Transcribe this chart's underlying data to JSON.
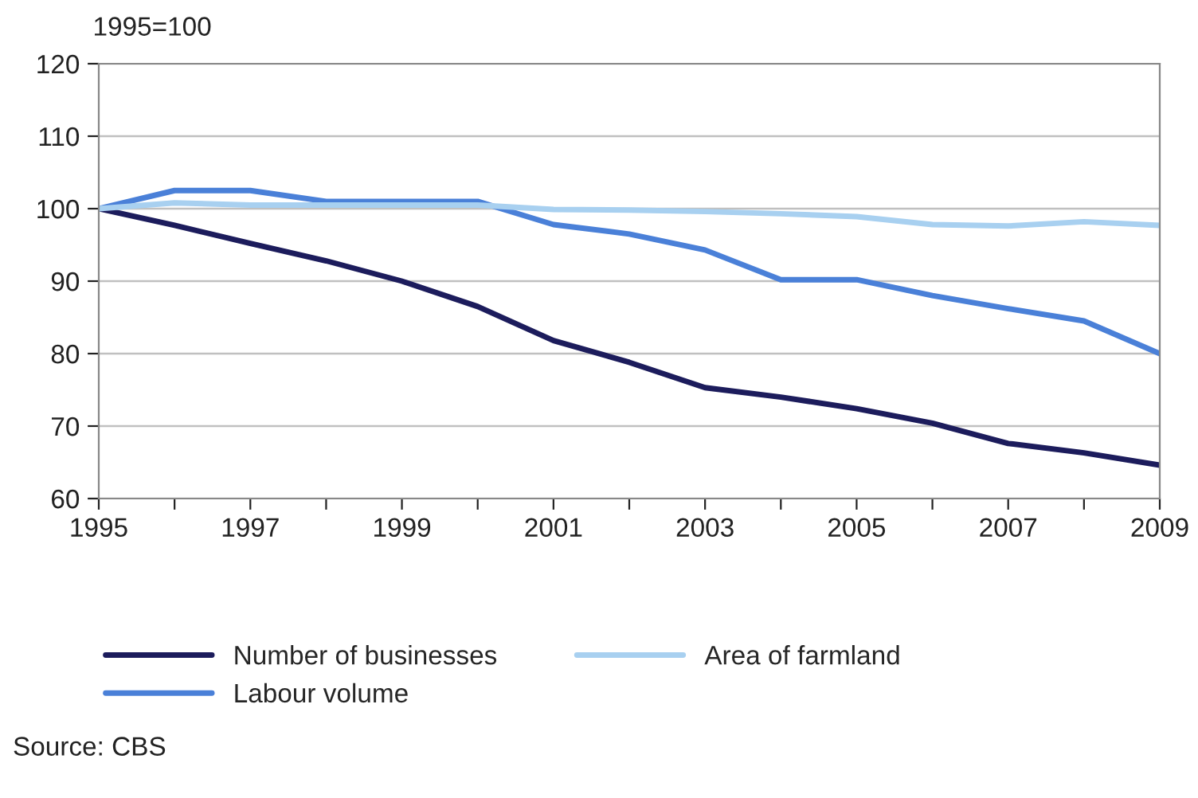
{
  "chart_data": {
    "type": "line",
    "ylabel": "1995=100",
    "x": [
      1995,
      1996,
      1997,
      1998,
      1999,
      2000,
      2001,
      2002,
      2003,
      2004,
      2005,
      2006,
      2007,
      2008,
      2009
    ],
    "series": [
      {
        "name": "Number of businesses",
        "color": "#1c1c5c",
        "values": [
          100,
          97.7,
          95.2,
          92.8,
          90,
          86.5,
          81.8,
          78.8,
          75.3,
          74,
          72.4,
          70.4,
          67.6,
          66.3,
          64.6
        ]
      },
      {
        "name": "Labour volume",
        "color": "#4a80d8",
        "values": [
          100,
          102.5,
          102.5,
          101,
          101,
          101,
          97.8,
          96.5,
          94.3,
          90.2,
          90.2,
          88,
          86.2,
          84.5,
          80
        ]
      },
      {
        "name": "Area of farmland",
        "color": "#a8d0f0",
        "values": [
          100,
          100.8,
          100.5,
          100.5,
          100.5,
          100.5,
          99.9,
          99.8,
          99.6,
          99.3,
          98.9,
          97.8,
          97.6,
          98.2,
          97.7
        ]
      }
    ],
    "xlim": [
      1995,
      2009
    ],
    "xticks": [
      1995,
      {
        "value": 1996,
        "label": null
      },
      1997,
      {
        "value": 1998,
        "label": null
      },
      1999,
      {
        "value": 2000,
        "label": null
      },
      2001,
      {
        "value": 2002,
        "label": null
      },
      2003,
      {
        "value": 2004,
        "label": null
      },
      2005,
      {
        "value": 2006,
        "label": null
      },
      2007,
      {
        "value": 2008,
        "label": null
      },
      2009
    ],
    "ylim": [
      60,
      120
    ],
    "yticks": [
      60,
      70,
      80,
      90,
      100,
      110,
      120
    ],
    "grid": "y",
    "legend": "bottom",
    "marker": "none",
    "line_style": "solid",
    "annotations": [
      "Source: CBS"
    ]
  }
}
